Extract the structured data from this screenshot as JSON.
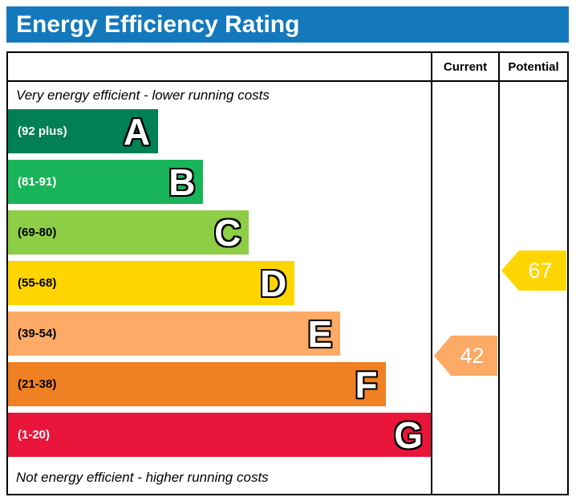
{
  "header": {
    "title": "Energy Efficiency Rating"
  },
  "columns": {
    "current": "Current",
    "potential": "Potential"
  },
  "captions": {
    "top": "Very energy efficient - lower running costs",
    "bottom": "Not energy efficient - higher running costs"
  },
  "bands": [
    {
      "letter": "A",
      "range": "(92 plus)",
      "color": "#008054",
      "text_color": "#ffffff",
      "width_pct": 35.5
    },
    {
      "letter": "B",
      "range": "(81-91)",
      "color": "#19b459",
      "text_color": "#ffffff",
      "width_pct": 46.2
    },
    {
      "letter": "C",
      "range": "(69-80)",
      "color": "#8dce46",
      "text_color": "#000000",
      "width_pct": 57.0
    },
    {
      "letter": "D",
      "range": "(55-68)",
      "color": "#ffd500",
      "text_color": "#000000",
      "width_pct": 67.8
    },
    {
      "letter": "E",
      "range": "(39-54)",
      "color": "#fcaa65",
      "text_color": "#000000",
      "width_pct": 78.6
    },
    {
      "letter": "F",
      "range": "(21-38)",
      "color": "#ef8023",
      "text_color": "#000000",
      "width_pct": 89.3
    },
    {
      "letter": "G",
      "range": "(1-20)",
      "color": "#e9153b",
      "text_color": "#ffffff",
      "width_pct": 100
    }
  ],
  "ratings": {
    "current": {
      "value": "42",
      "band": "E",
      "color": "#fcaa65"
    },
    "potential": {
      "value": "67",
      "band": "D",
      "color": "#ffd500"
    }
  },
  "theme": {
    "header_bg": "#1479bc",
    "header_text": "#ffffff",
    "border": "#000000"
  },
  "chart_data": {
    "type": "bar",
    "title": "Energy Efficiency Rating",
    "categories": [
      "A",
      "B",
      "C",
      "D",
      "E",
      "F",
      "G"
    ],
    "band_ranges": [
      "(92 plus)",
      "(81-91)",
      "(69-80)",
      "(55-68)",
      "(39-54)",
      "(21-38)",
      "(1-20)"
    ],
    "band_colors": [
      "#008054",
      "#19b459",
      "#8dce46",
      "#ffd500",
      "#fcaa65",
      "#ef8023",
      "#e9153b"
    ],
    "columns": [
      "Current",
      "Potential"
    ],
    "current": 42,
    "current_band": "E",
    "potential": 67,
    "potential_band": "D",
    "annotations": [
      "Very energy efficient - lower running costs",
      "Not energy efficient - higher running costs"
    ]
  }
}
